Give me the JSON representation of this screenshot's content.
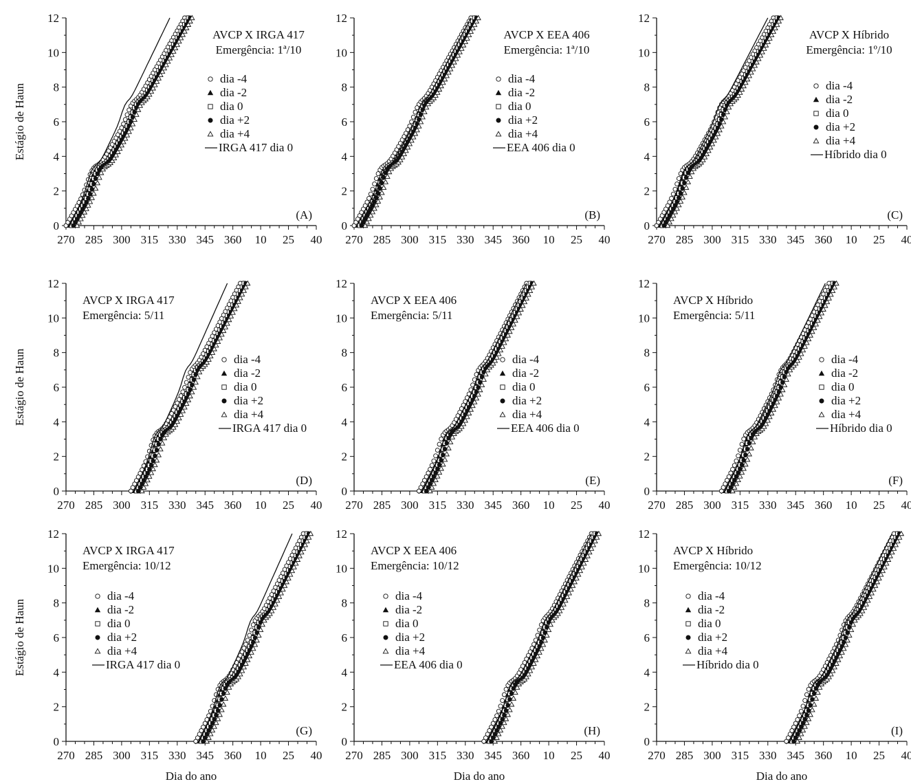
{
  "figure": {
    "ylabel": "Estágio de Haun",
    "xlabel": "Dia do ano",
    "colors": {
      "ink": "#111111",
      "background": "#ffffff"
    }
  },
  "chart_data": [
    {
      "type": "scatter",
      "panel": "A",
      "title": [
        "AVCP X IRGA 417",
        "Emergência: 1ª/10"
      ],
      "legend_placement": "top-right",
      "xticks": [
        "270",
        "285",
        "300",
        "315",
        "330",
        "345",
        "360",
        "10",
        "25",
        "40"
      ],
      "yticks": [
        "0",
        "2",
        "4",
        "6",
        "8",
        "10",
        "12"
      ],
      "ylim": [
        0,
        12
      ],
      "xlim": [
        270,
        40
      ],
      "series": [
        {
          "name": "dia -4",
          "marker": "open-circle",
          "start": 270,
          "end": 334
        },
        {
          "name": "dia -2",
          "marker": "filled-triangle",
          "start": 272,
          "end": 336
        },
        {
          "name": "dia 0",
          "marker": "open-square",
          "start": 273,
          "end": 336
        },
        {
          "name": "dia +2",
          "marker": "filled-circle",
          "start": 274,
          "end": 337
        },
        {
          "name": "dia +4",
          "marker": "open-triangle",
          "start": 276,
          "end": 338
        },
        {
          "name": "IRGA 417 dia 0",
          "marker": "line",
          "start": 272,
          "end": 326
        }
      ]
    },
    {
      "type": "scatter",
      "panel": "B",
      "title": [
        "AVCP X EEA 406",
        "Emergência: 1ª/10"
      ],
      "legend_placement": "top-right",
      "xticks": [
        "270",
        "285",
        "300",
        "315",
        "330",
        "345",
        "360",
        "10",
        "25",
        "40"
      ],
      "yticks": [
        "0",
        "2",
        "4",
        "6",
        "8",
        "10",
        "12"
      ],
      "ylim": [
        0,
        12
      ],
      "xlim": [
        270,
        40
      ],
      "series": [
        {
          "name": "dia -4",
          "marker": "open-circle",
          "start": 270,
          "end": 333
        },
        {
          "name": "dia -2",
          "marker": "filled-triangle",
          "start": 272,
          "end": 335
        },
        {
          "name": "dia 0",
          "marker": "open-square",
          "start": 273,
          "end": 335
        },
        {
          "name": "dia +2",
          "marker": "filled-circle",
          "start": 274,
          "end": 336
        },
        {
          "name": "dia +4",
          "marker": "open-triangle",
          "start": 276,
          "end": 337
        },
        {
          "name": "EEA 406 dia 0",
          "marker": "line",
          "start": 273,
          "end": 333
        }
      ]
    },
    {
      "type": "scatter",
      "panel": "C",
      "title": [
        "AVCP X Híbrido",
        "Emergência: 1º/10"
      ],
      "legend_placement": "top-right",
      "xticks": [
        "270",
        "285",
        "300",
        "315",
        "330",
        "345",
        "360",
        "10",
        "25",
        "40"
      ],
      "yticks": [
        "0",
        "2",
        "4",
        "6",
        "8",
        "10",
        "12"
      ],
      "ylim": [
        0,
        12
      ],
      "xlim": [
        270,
        40
      ],
      "series": [
        {
          "name": "dia -4",
          "marker": "open-circle",
          "start": 270,
          "end": 333
        },
        {
          "name": "dia -2",
          "marker": "filled-triangle",
          "start": 272,
          "end": 335
        },
        {
          "name": "dia 0",
          "marker": "open-square",
          "start": 273,
          "end": 335
        },
        {
          "name": "dia +2",
          "marker": "filled-circle",
          "start": 274,
          "end": 336
        },
        {
          "name": "dia +4",
          "marker": "open-triangle",
          "start": 276,
          "end": 337
        },
        {
          "name": "Híbrido dia 0",
          "marker": "line",
          "start": 272,
          "end": 330
        }
      ]
    },
    {
      "type": "scatter",
      "panel": "D",
      "title": [
        "AVCP X IRGA 417",
        "Emergência: 5/11"
      ],
      "legend_placement": "right",
      "xticks": [
        "270",
        "285",
        "300",
        "315",
        "330",
        "345",
        "360",
        "10",
        "25",
        "40"
      ],
      "yticks": [
        "0",
        "2",
        "4",
        "6",
        "8",
        "10",
        "12"
      ],
      "ylim": [
        0,
        12
      ],
      "xlim": [
        270,
        40
      ],
      "series": [
        {
          "name": "dia -4",
          "marker": "open-circle",
          "start": 305,
          "end": 364
        },
        {
          "name": "dia -2",
          "marker": "filled-triangle",
          "start": 307,
          "end": 366
        },
        {
          "name": "dia 0",
          "marker": "open-square",
          "start": 308,
          "end": 366
        },
        {
          "name": "dia +2",
          "marker": "filled-circle",
          "start": 309,
          "end": 367
        },
        {
          "name": "dia +4",
          "marker": "open-triangle",
          "start": 311,
          "end": 368
        },
        {
          "name": "IRGA 417 dia 0",
          "marker": "line",
          "start": 307,
          "end": 357
        }
      ]
    },
    {
      "type": "scatter",
      "panel": "E",
      "title": [
        "AVCP X EEA 406",
        "Emergência: 5/11"
      ],
      "legend_placement": "right",
      "xticks": [
        "270",
        "285",
        "300",
        "315",
        "330",
        "345",
        "360",
        "10",
        "25",
        "40"
      ],
      "yticks": [
        "0",
        "2",
        "4",
        "6",
        "8",
        "10",
        "12"
      ],
      "ylim": [
        0,
        12
      ],
      "xlim": [
        270,
        40
      ],
      "series": [
        {
          "name": "dia -4",
          "marker": "open-circle",
          "start": 305,
          "end": 363
        },
        {
          "name": "dia -2",
          "marker": "filled-triangle",
          "start": 307,
          "end": 365
        },
        {
          "name": "dia 0",
          "marker": "open-square",
          "start": 308,
          "end": 365
        },
        {
          "name": "dia +2",
          "marker": "filled-circle",
          "start": 309,
          "end": 366
        },
        {
          "name": "dia +4",
          "marker": "open-triangle",
          "start": 311,
          "end": 367
        },
        {
          "name": "EEA 406 dia 0",
          "marker": "line",
          "start": 307,
          "end": 363
        }
      ]
    },
    {
      "type": "scatter",
      "panel": "F",
      "title": [
        "AVCP X Híbrido",
        "Emergência: 5/11"
      ],
      "legend_placement": "right",
      "xticks": [
        "270",
        "285",
        "300",
        "315",
        "330",
        "345",
        "360",
        "10",
        "25",
        "40"
      ],
      "yticks": [
        "0",
        "2",
        "4",
        "6",
        "8",
        "10",
        "12"
      ],
      "ylim": [
        0,
        12
      ],
      "xlim": [
        270,
        40
      ],
      "series": [
        {
          "name": "dia -4",
          "marker": "open-circle",
          "start": 305,
          "end": 363
        },
        {
          "name": "dia -2",
          "marker": "filled-triangle",
          "start": 307,
          "end": 365
        },
        {
          "name": "dia 0",
          "marker": "open-square",
          "start": 308,
          "end": 365
        },
        {
          "name": "dia +2",
          "marker": "filled-circle",
          "start": 309,
          "end": 366
        },
        {
          "name": "dia +4",
          "marker": "open-triangle",
          "start": 311,
          "end": 367
        },
        {
          "name": "Híbrido dia 0",
          "marker": "line",
          "start": 307,
          "end": 361
        }
      ]
    },
    {
      "type": "scatter",
      "panel": "G",
      "title": [
        "AVCP X IRGA 417",
        "Emergência: 10/12"
      ],
      "legend_placement": "left",
      "xticks": [
        "270",
        "285",
        "300",
        "315",
        "330",
        "345",
        "360",
        "10",
        "25",
        "40"
      ],
      "yticks": [
        "0",
        "2",
        "4",
        "6",
        "8",
        "10",
        "12"
      ],
      "ylim": [
        0,
        12
      ],
      "xlim": [
        270,
        40
      ],
      "series": [
        {
          "name": "dia -4",
          "marker": "open-circle",
          "start": 340,
          "end": 398
        },
        {
          "name": "dia -2",
          "marker": "filled-triangle",
          "start": 342,
          "end": 400
        },
        {
          "name": "dia 0",
          "marker": "open-square",
          "start": 343,
          "end": 400
        },
        {
          "name": "dia +2",
          "marker": "filled-circle",
          "start": 344,
          "end": 401
        },
        {
          "name": "dia +4",
          "marker": "open-triangle",
          "start": 346,
          "end": 402
        },
        {
          "name": "IRGA 417 dia 0",
          "marker": "line",
          "start": 342,
          "end": 392
        }
      ]
    },
    {
      "type": "scatter",
      "panel": "H",
      "title": [
        "AVCP X EEA 406",
        "Emergência: 10/12"
      ],
      "legend_placement": "left",
      "xticks": [
        "270",
        "285",
        "300",
        "315",
        "330",
        "345",
        "360",
        "10",
        "25",
        "40"
      ],
      "yticks": [
        "0",
        "2",
        "4",
        "6",
        "8",
        "10",
        "12"
      ],
      "ylim": [
        0,
        12
      ],
      "xlim": [
        270,
        40
      ],
      "series": [
        {
          "name": "dia -4",
          "marker": "open-circle",
          "start": 340,
          "end": 398
        },
        {
          "name": "dia -2",
          "marker": "filled-triangle",
          "start": 342,
          "end": 400
        },
        {
          "name": "dia 0",
          "marker": "open-square",
          "start": 343,
          "end": 400
        },
        {
          "name": "dia +2",
          "marker": "filled-circle",
          "start": 344,
          "end": 401
        },
        {
          "name": "dia +4",
          "marker": "open-triangle",
          "start": 346,
          "end": 402
        },
        {
          "name": "EEA 406 dia 0",
          "marker": "line",
          "start": 342,
          "end": 398
        }
      ]
    },
    {
      "type": "scatter",
      "panel": "I",
      "title": [
        "AVCP X Híbrido",
        "Emergência: 10/12"
      ],
      "legend_placement": "left",
      "xticks": [
        "270",
        "285",
        "300",
        "315",
        "330",
        "345",
        "360",
        "10",
        "25",
        "40"
      ],
      "yticks": [
        "0",
        "2",
        "4",
        "6",
        "8",
        "10",
        "12"
      ],
      "ylim": [
        0,
        12
      ],
      "xlim": [
        270,
        40
      ],
      "series": [
        {
          "name": "dia -4",
          "marker": "open-circle",
          "start": 340,
          "end": 398
        },
        {
          "name": "dia -2",
          "marker": "filled-triangle",
          "start": 342,
          "end": 400
        },
        {
          "name": "dia 0",
          "marker": "open-square",
          "start": 343,
          "end": 400
        },
        {
          "name": "dia +2",
          "marker": "filled-circle",
          "start": 344,
          "end": 401
        },
        {
          "name": "dia +4",
          "marker": "open-triangle",
          "start": 346,
          "end": 402
        },
        {
          "name": "Híbrido dia 0",
          "marker": "line",
          "start": 342,
          "end": 397
        }
      ]
    }
  ]
}
